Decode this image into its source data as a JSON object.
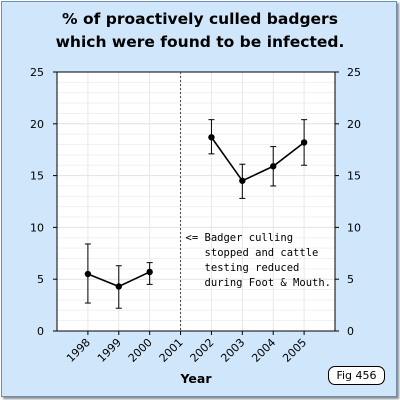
{
  "figure": {
    "badge": "Fig 456"
  },
  "chart_data": {
    "type": "line",
    "title_lines": [
      "% of proactively culled badgers",
      "which were found to be infected."
    ],
    "xlabel": "Year",
    "ylabel": "",
    "ylim": [
      0,
      25
    ],
    "yticks": [
      0,
      5,
      10,
      15,
      20,
      25
    ],
    "right_axis_ticks": true,
    "categories": [
      "1998",
      "1999",
      "2000",
      "2001",
      "2002",
      "2003",
      "2004",
      "2005"
    ],
    "grid": true,
    "series": [
      {
        "segment": "before",
        "color": "#000000",
        "points": [
          {
            "x": "1998",
            "y": 5.5,
            "low": 2.7,
            "high": 8.4
          },
          {
            "x": "1999",
            "y": 4.3,
            "low": 2.2,
            "high": 6.3
          },
          {
            "x": "2000",
            "y": 5.7,
            "low": 4.5,
            "high": 6.6
          }
        ]
      },
      {
        "segment": "after",
        "color": "#000000",
        "points": [
          {
            "x": "2002",
            "y": 18.7,
            "low": 17.1,
            "high": 20.4
          },
          {
            "x": "2003",
            "y": 14.5,
            "low": 12.8,
            "high": 16.1
          },
          {
            "x": "2004",
            "y": 15.9,
            "low": 14.0,
            "high": 17.8
          },
          {
            "x": "2005",
            "y": 18.2,
            "low": 16.0,
            "high": 20.4
          }
        ]
      }
    ],
    "divider_x": "2001",
    "annotation": {
      "lines": [
        "<= Badger culling",
        "stopped and cattle",
        "testing reduced",
        "during Foot & Mouth."
      ]
    }
  }
}
